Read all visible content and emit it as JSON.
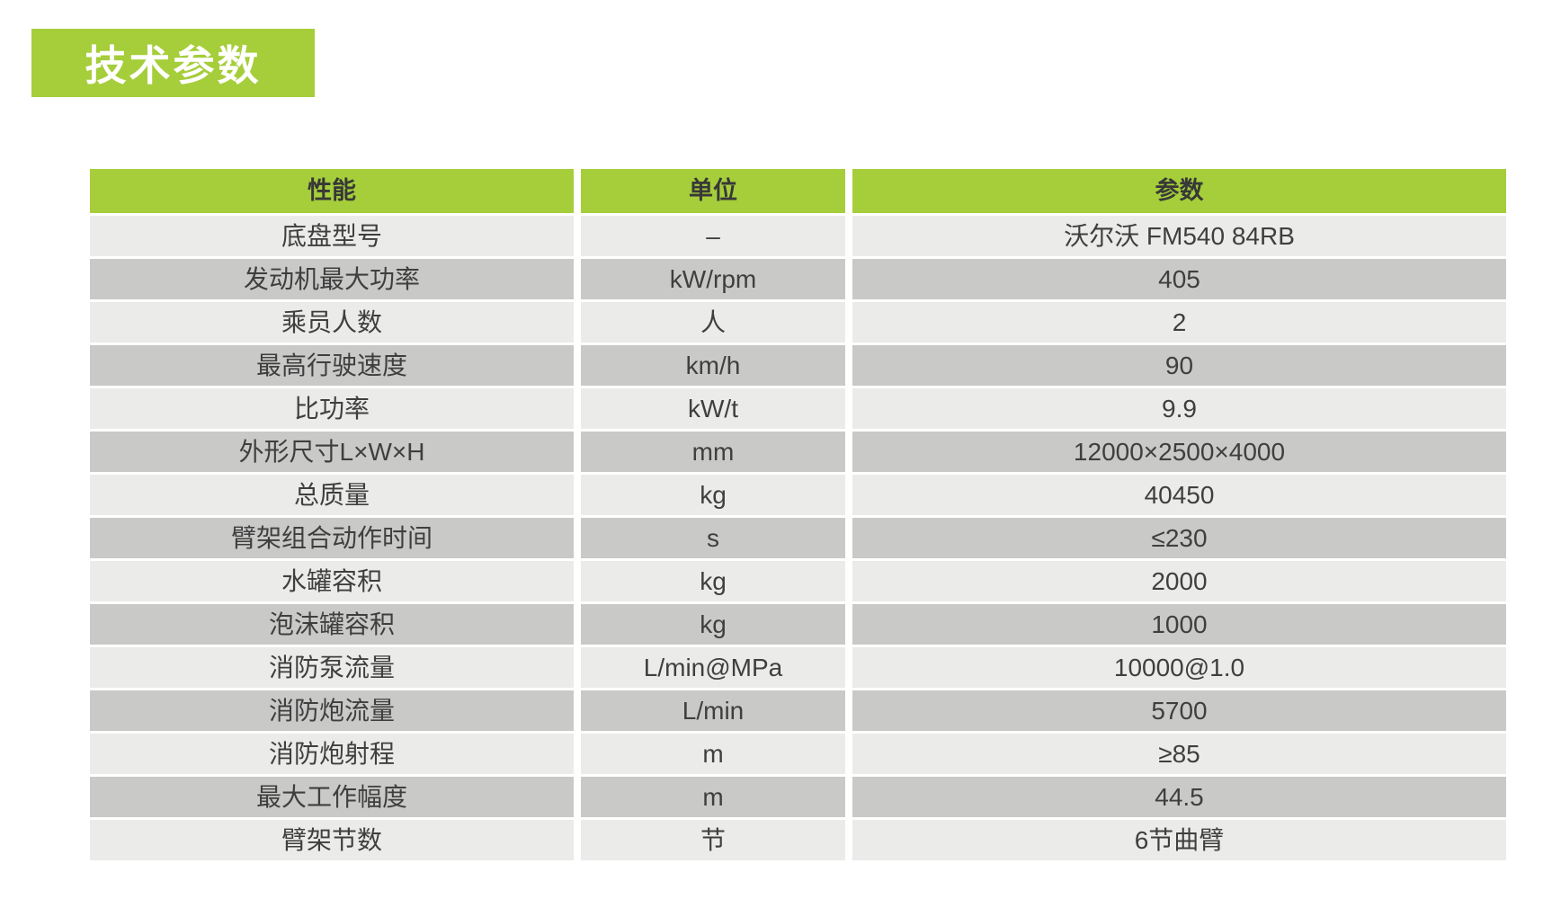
{
  "page": {
    "banner_title": "技术参数"
  },
  "colors": {
    "accent_green": "#a5ce3a",
    "row_light": "#ebebea",
    "row_dark": "#c9c9c8",
    "text_dark": "#3f3f3f",
    "banner_text": "#ffffff"
  },
  "table": {
    "columns": {
      "performance": "性能",
      "unit": "单位",
      "value": "参数"
    },
    "rows": [
      {
        "performance": "底盘型号",
        "unit": "–",
        "value": "沃尔沃 FM540 84RB"
      },
      {
        "performance": "发动机最大功率",
        "unit": "kW/rpm",
        "value": "405"
      },
      {
        "performance": "乘员人数",
        "unit": "人",
        "value": "2"
      },
      {
        "performance": "最高行驶速度",
        "unit": "km/h",
        "value": "90"
      },
      {
        "performance": "比功率",
        "unit": "kW/t",
        "value": "9.9"
      },
      {
        "performance": "外形尺寸L×W×H",
        "unit": "mm",
        "value": "12000×2500×4000"
      },
      {
        "performance": "总质量",
        "unit": "kg",
        "value": "40450"
      },
      {
        "performance": "臂架组合动作时间",
        "unit": "s",
        "value": "≤230"
      },
      {
        "performance": "水罐容积",
        "unit": "kg",
        "value": "2000"
      },
      {
        "performance": "泡沫罐容积",
        "unit": "kg",
        "value": "1000"
      },
      {
        "performance": "消防泵流量",
        "unit": "L/min@MPa",
        "value": "10000@1.0"
      },
      {
        "performance": "消防炮流量",
        "unit": "L/min",
        "value": "5700"
      },
      {
        "performance": "消防炮射程",
        "unit": "m",
        "value": "≥85"
      },
      {
        "performance": "最大工作幅度",
        "unit": "m",
        "value": "44.5"
      },
      {
        "performance": "臂架节数",
        "unit": "节",
        "value": "6节曲臂"
      }
    ]
  }
}
